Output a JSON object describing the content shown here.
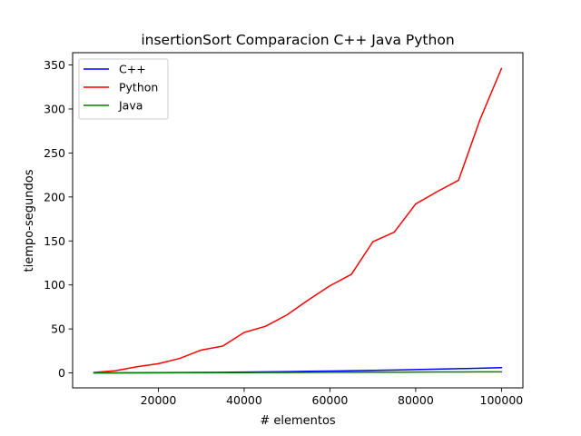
{
  "chart_data": {
    "type": "line",
    "title": "insertionSort Comparacion C++ Java Python",
    "xlabel": "# elementos",
    "ylabel": "tiempo-segundos",
    "xlim": [
      0,
      105000
    ],
    "ylim": [
      -17,
      364
    ],
    "xticks": [
      20000,
      40000,
      60000,
      80000,
      100000
    ],
    "yticks": [
      0,
      50,
      100,
      150,
      200,
      250,
      300,
      350
    ],
    "grid": false,
    "legend": "top-left",
    "x": [
      5000,
      10000,
      15000,
      20000,
      25000,
      30000,
      35000,
      40000,
      45000,
      50000,
      55000,
      60000,
      65000,
      70000,
      75000,
      80000,
      85000,
      90000,
      95000,
      100000
    ],
    "series": [
      {
        "name": "C++",
        "color": "#0000ff",
        "values": [
          0.02,
          0.06,
          0.13,
          0.24,
          0.37,
          0.53,
          0.72,
          0.94,
          1.2,
          1.5,
          1.8,
          2.1,
          2.5,
          2.9,
          3.3,
          3.8,
          4.3,
          4.8,
          5.3,
          5.9
        ]
      },
      {
        "name": "Python",
        "color": "#ff0000",
        "values": [
          0.5,
          2.5,
          7,
          10.5,
          16.5,
          26,
          30.5,
          46,
          53,
          66,
          83,
          99,
          112,
          149,
          160,
          192,
          206,
          219,
          288,
          346
        ]
      },
      {
        "name": "Java",
        "color": "#008000",
        "values": [
          0.01,
          0.03,
          0.06,
          0.1,
          0.15,
          0.2,
          0.26,
          0.33,
          0.4,
          0.47,
          0.55,
          0.63,
          0.71,
          0.79,
          0.87,
          0.95,
          1.03,
          1.1,
          1.18,
          1.25
        ]
      }
    ]
  }
}
